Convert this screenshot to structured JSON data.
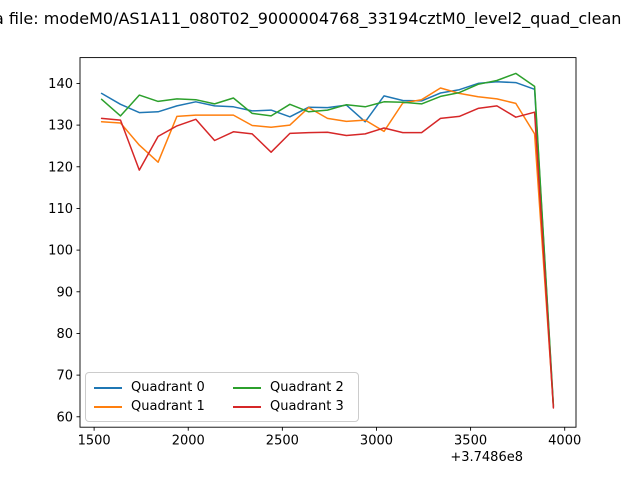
{
  "title": {
    "text": "a file: modeM0/AS1A11_080T02_9000004768_33194cztM0_level2_quad_clean"
  },
  "chart_data": {
    "type": "line",
    "title": "a file: modeM0/AS1A11_080T02_9000004768_33194cztM0_level2_quad_clean",
    "xlabel": "",
    "ylabel": "",
    "xlim": [
      1425,
      4060
    ],
    "ylim": [
      57.5,
      146.2
    ],
    "x_ticks": [
      1500,
      2000,
      2500,
      3000,
      3500,
      4000
    ],
    "y_ticks": [
      60,
      70,
      80,
      90,
      100,
      110,
      120,
      130,
      140
    ],
    "x_offset_text": "+3.7486e8",
    "grid": false,
    "legend_position": "lower left",
    "x": [
      1540,
      1640,
      1740,
      1840,
      1940,
      2040,
      2140,
      2240,
      2340,
      2440,
      2540,
      2640,
      2740,
      2840,
      2940,
      3040,
      3140,
      3240,
      3340,
      3440,
      3540,
      3640,
      3740,
      3840,
      3940
    ],
    "series": [
      {
        "name": "Quadrant 0",
        "color": "#1f77b4",
        "values": [
          137.6,
          135.0,
          133.0,
          133.2,
          134.6,
          135.6,
          134.6,
          134.4,
          133.4,
          133.6,
          132.0,
          134.3,
          134.2,
          134.8,
          130.8,
          137.0,
          135.9,
          135.8,
          137.7,
          138.5,
          140.0,
          140.4,
          140.2,
          138.6,
          62.4
        ]
      },
      {
        "name": "Quadrant 1",
        "color": "#ff7f0e",
        "values": [
          130.8,
          130.5,
          125.2,
          121.1,
          132.1,
          132.4,
          132.4,
          132.4,
          129.9,
          129.5,
          130.0,
          134.2,
          131.6,
          130.9,
          131.2,
          128.5,
          135.3,
          136.1,
          138.9,
          137.6,
          136.8,
          136.3,
          135.2,
          127.9,
          62.6
        ]
      },
      {
        "name": "Quadrant 2",
        "color": "#2ca02c",
        "values": [
          136.2,
          132.2,
          137.2,
          135.7,
          136.3,
          136.1,
          135.1,
          136.5,
          132.8,
          132.2,
          135.0,
          133.2,
          133.6,
          134.9,
          134.4,
          135.6,
          135.5,
          135.1,
          136.9,
          137.8,
          139.8,
          140.7,
          142.4,
          139.3,
          62.8
        ]
      },
      {
        "name": "Quadrant 3",
        "color": "#d62728",
        "values": [
          131.6,
          131.2,
          119.2,
          127.3,
          129.8,
          131.4,
          126.3,
          128.4,
          127.9,
          123.5,
          128.0,
          128.2,
          128.3,
          127.5,
          127.9,
          129.3,
          128.2,
          128.2,
          131.6,
          132.1,
          134.0,
          134.6,
          131.9,
          133.1,
          62.1
        ]
      }
    ]
  }
}
